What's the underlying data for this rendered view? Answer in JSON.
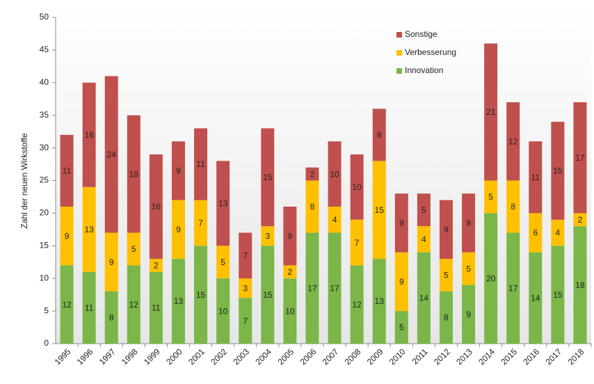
{
  "chart_data": {
    "type": "stacked_bar",
    "y_label": "Zahl der neuen Wirkstoffe",
    "categories": [
      "1995",
      "1996",
      "1997",
      "1998",
      "1999",
      "2000",
      "2001",
      "2002",
      "2003",
      "2004",
      "2005",
      "2006",
      "2007",
      "2008",
      "2009",
      "2010",
      "2011",
      "2012",
      "2013",
      "2014",
      "2015",
      "2016",
      "2017",
      "2018"
    ],
    "series": [
      {
        "name": "Innovation",
        "color": "#7ab648",
        "values": [
          12,
          11,
          8,
          12,
          11,
          13,
          15,
          10,
          7,
          15,
          10,
          17,
          17,
          12,
          13,
          5,
          14,
          8,
          9,
          20,
          17,
          14,
          15,
          18
        ]
      },
      {
        "name": "Verbesserung",
        "color": "#ffc000",
        "values": [
          9,
          13,
          9,
          5,
          2,
          9,
          7,
          5,
          3,
          3,
          2,
          8,
          4,
          7,
          15,
          9,
          4,
          5,
          5,
          5,
          8,
          6,
          4,
          2
        ]
      },
      {
        "name": "Sonstige",
        "color": "#c0504d",
        "values": [
          11,
          16,
          24,
          18,
          16,
          9,
          11,
          13,
          7,
          15,
          9,
          2,
          10,
          10,
          8,
          9,
          5,
          9,
          9,
          21,
          12,
          11,
          15,
          17
        ]
      }
    ],
    "ylim": [
      0,
      50
    ],
    "yticks": [
      0,
      5,
      10,
      15,
      20,
      25,
      30,
      35,
      40,
      45,
      50
    ],
    "grid": false,
    "legend": "top-right"
  }
}
